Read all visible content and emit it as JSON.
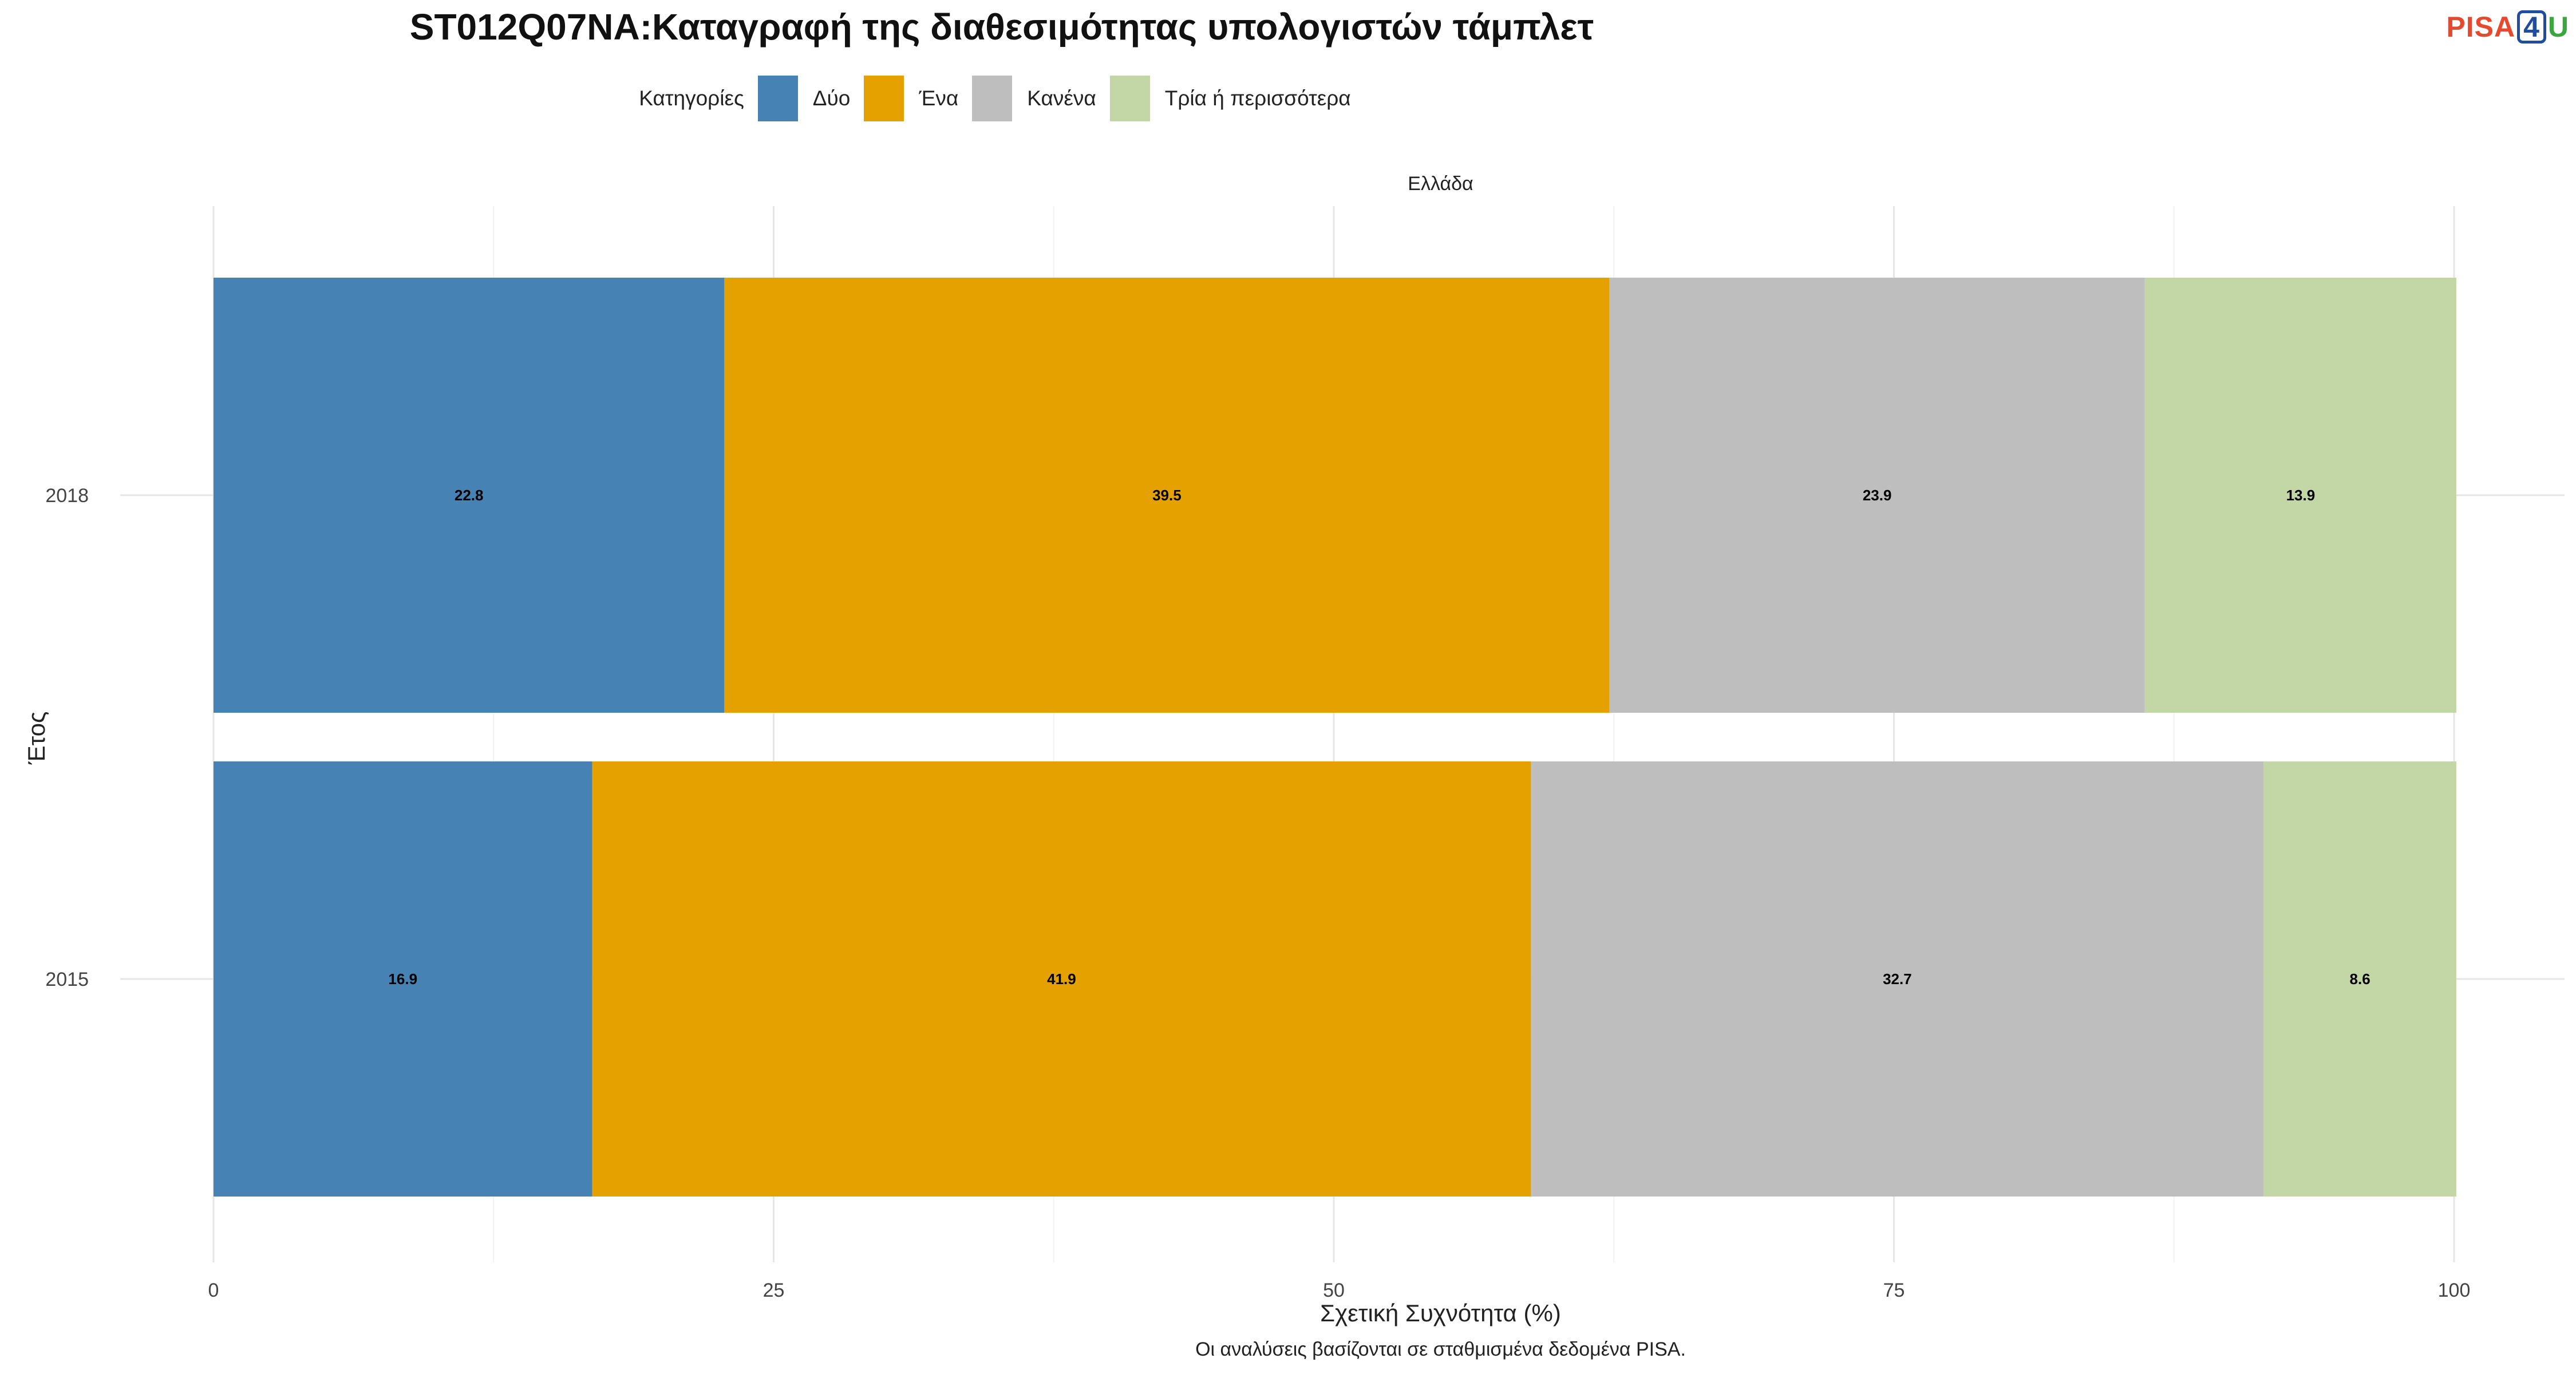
{
  "title": "ST012Q07NA:Καταγραφή της διαθεσιμότητας υπολογιστών τάμπλετ",
  "logo": {
    "part1": "PISA",
    "part2": "4",
    "part3": "U"
  },
  "legend": {
    "title": "Κατηγορίες",
    "items": [
      {
        "label": "Δύο",
        "color": "#4682b4"
      },
      {
        "label": "Ένα",
        "color": "#e5a100"
      },
      {
        "label": "Κανένα",
        "color": "#bebebe"
      },
      {
        "label": "Τρία ή περισσότερα",
        "color": "#c3d6a5"
      }
    ]
  },
  "facet": "Ελλάδα",
  "chart_data": {
    "type": "bar",
    "orientation": "horizontal",
    "stacked": true,
    "categories": [
      "2018",
      "2015"
    ],
    "series": [
      {
        "name": "Δύο",
        "values": [
          22.8,
          16.9
        ],
        "color": "#4682b4"
      },
      {
        "name": "Ένα",
        "values": [
          39.5,
          41.9
        ],
        "color": "#e5a100"
      },
      {
        "name": "Κανένα",
        "values": [
          23.9,
          32.7
        ],
        "color": "#bebebe"
      },
      {
        "name": "Τρία ή περισσότερα",
        "values": [
          13.9,
          8.6
        ],
        "color": "#c3d6a5"
      }
    ],
    "xlabel": "Σχετική Συχνότητα (%)",
    "ylabel": "Έτος",
    "xlim": [
      0,
      100
    ],
    "xticks": [
      0,
      25,
      50,
      75,
      100
    ],
    "grid": true,
    "legend_position": "top"
  },
  "caption": "Οι αναλύσεις βασίζονται σε σταθμισμένα δεδομένα PISA."
}
